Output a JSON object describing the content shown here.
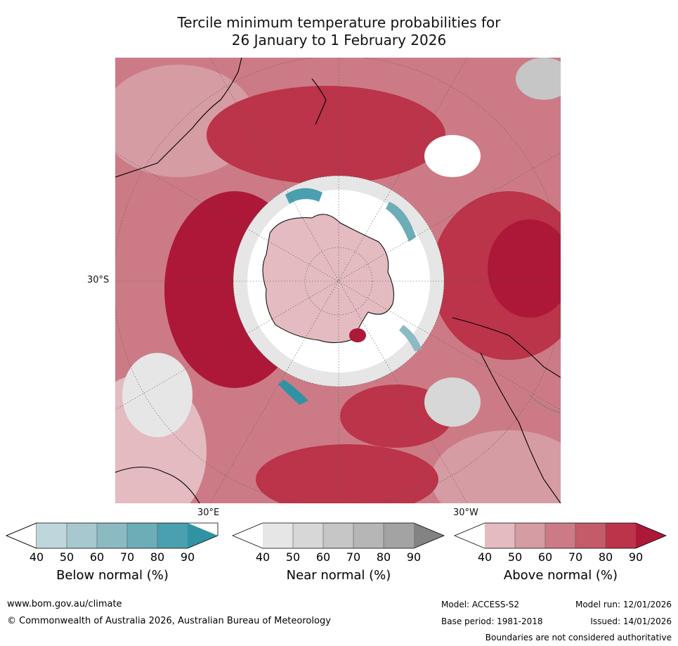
{
  "title": {
    "line1": "Tercile minimum temperature probabilities for",
    "line2": "26 January to 1 February 2026"
  },
  "map_labels": {
    "lat_label": "30°S",
    "lon_label_east": "30°E",
    "lon_label_west": "30°W"
  },
  "colorbars": [
    {
      "id": "below",
      "title": "Below normal (%)",
      "ticks": [
        "40",
        "50",
        "60",
        "70",
        "80",
        "90"
      ],
      "colors": [
        "#ffffff",
        "#bfd6dc",
        "#a7c8cf",
        "#8cbac3",
        "#6cadb8",
        "#4aa0ae",
        "#2f93a4"
      ]
    },
    {
      "id": "near",
      "title": "Near normal (%)",
      "ticks": [
        "40",
        "50",
        "60",
        "70",
        "80",
        "90"
      ],
      "colors": [
        "#ffffff",
        "#e6e6e6",
        "#d7d7d7",
        "#c6c6c6",
        "#b6b6b6",
        "#a3a3a3",
        "#838383"
      ]
    },
    {
      "id": "above",
      "title": "Above normal (%)",
      "ticks": [
        "40",
        "50",
        "60",
        "70",
        "80",
        "90"
      ],
      "colors": [
        "#ffffff",
        "#e3bbc0",
        "#d69ca3",
        "#cc7b86",
        "#c35b69",
        "#bb3449",
        "#ad1838"
      ]
    }
  ],
  "footer": {
    "url": "www.bom.gov.au/climate",
    "copyright": "© Commonwealth of Australia 2026, Australian Bureau of Meteorology",
    "model": "Model: ACCESS-S2",
    "model_run": "Model run: 12/01/2026",
    "base_period": "Base period: 1981-2018",
    "issued": "Issued: 14/01/2026",
    "disclaimer": "Boundaries are not considered authoritative"
  },
  "palette": {
    "above_light": "#e3bbc0",
    "above_mid": "#cc7b86",
    "above_strong": "#bb3449",
    "above_max": "#ad1838",
    "near": "#e0e0e0",
    "below": "#4aa0ae",
    "coast": "#000000"
  }
}
